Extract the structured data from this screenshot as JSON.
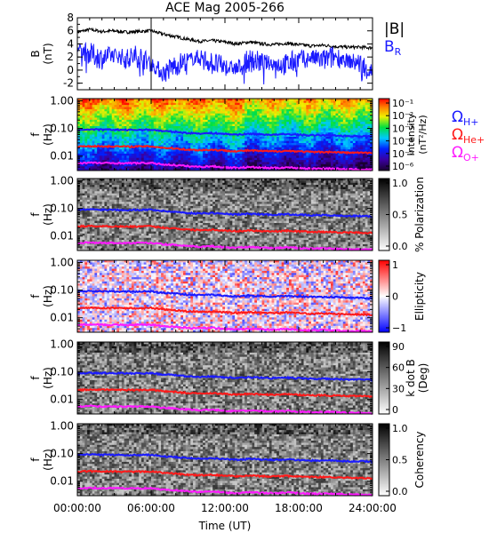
{
  "figure": {
    "title": "ACE Mag 2005-266",
    "xlabel": "Time (UT)",
    "x_ticks": [
      "00:00:00",
      "06:00:00",
      "12:00:00",
      "18:00:00",
      "24:00:00"
    ]
  },
  "colors": {
    "axis": "#000000",
    "B_total": "#000000",
    "B_R": "#1a1aff",
    "H_plus": "#1a1aff",
    "He_plus": "#ff1a1a",
    "O_plus": "#ff1aff"
  },
  "chart_data": [
    {
      "type": "line",
      "panel": "B",
      "ylabel": "B",
      "ylabel_unit": "(nT)",
      "ylim": [
        -3,
        8
      ],
      "y_ticks": [
        "-2",
        "0",
        "2",
        "4",
        "6",
        "8"
      ],
      "x_hours": [
        0,
        1,
        2,
        3,
        4,
        5,
        6,
        7,
        8,
        9,
        10,
        11,
        12,
        13,
        14,
        15,
        16,
        17,
        18,
        19,
        20,
        21,
        22,
        23,
        24
      ],
      "series": [
        {
          "name": "|B|",
          "color": "#000000",
          "values": [
            5.8,
            6.2,
            5.9,
            6.0,
            5.8,
            5.9,
            6.0,
            5.5,
            5.1,
            4.7,
            4.4,
            4.5,
            4.3,
            4.0,
            4.3,
            4.0,
            3.9,
            4.1,
            3.9,
            3.7,
            3.8,
            3.6,
            3.5,
            3.5,
            3.4
          ]
        },
        {
          "name": "B",
          "name_sub": "R",
          "color": "#1a1aff",
          "values": [
            3.2,
            2.5,
            1.8,
            2.4,
            1.7,
            2.2,
            1.0,
            -0.5,
            0.8,
            1.5,
            2.0,
            1.0,
            0.5,
            0.2,
            1.5,
            1.2,
            1.0,
            0.8,
            1.6,
            1.9,
            1.5,
            2.1,
            1.4,
            1.0,
            -0.5
          ]
        }
      ]
    },
    {
      "type": "heatmap",
      "panel": "intensity",
      "ylabel": "f",
      "ylabel_unit": "(Hz)",
      "y_scale": "log",
      "ylim": [
        0.003,
        1.2
      ],
      "y_ticks": [
        "1.00",
        "0.10",
        "0.01"
      ],
      "colorbar": {
        "label": "Intensity (nT²/Hz)",
        "scale": "log",
        "ticks": [
          "10⁻¹",
          "10⁻²",
          "10⁻³",
          "10⁻⁴",
          "10⁻⁵",
          "10⁻⁶"
        ],
        "palette": "rainbow"
      },
      "legend": [
        {
          "symbol": "Ω",
          "sub": "H+",
          "color": "#1a1aff"
        },
        {
          "symbol": "Ω",
          "sub": "He+",
          "color": "#ff1a1a"
        },
        {
          "symbol": "Ω",
          "sub": "O+",
          "color": "#ff1aff"
        }
      ]
    },
    {
      "type": "heatmap",
      "panel": "polarization",
      "ylabel": "f",
      "ylabel_unit": "(Hz)",
      "y_scale": "log",
      "y_ticks": [
        "1.00",
        "0.10",
        "0.01"
      ],
      "colorbar": {
        "label": "% Polarization",
        "ticks": [
          "1.0",
          "0.5",
          "0.0"
        ],
        "palette": "gray"
      }
    },
    {
      "type": "heatmap",
      "panel": "ellipticity",
      "ylabel": "f",
      "ylabel_unit": "(Hz)",
      "y_scale": "log",
      "y_ticks": [
        "1.00",
        "0.10",
        "0.01"
      ],
      "colorbar": {
        "label": "Ellipticity",
        "ticks": [
          "1",
          "0",
          "−1"
        ],
        "palette": "bwr"
      }
    },
    {
      "type": "heatmap",
      "panel": "kdotb",
      "ylabel": "f",
      "ylabel_unit": "(Hz)",
      "y_scale": "log",
      "y_ticks": [
        "1.00",
        "0.10",
        "0.01"
      ],
      "colorbar": {
        "label": "k dot B",
        "label2": "(Deg)",
        "ticks": [
          "90",
          "60",
          "30",
          "0"
        ],
        "palette": "gray"
      }
    },
    {
      "type": "heatmap",
      "panel": "coherency",
      "ylabel": "f",
      "ylabel_unit": "(Hz)",
      "y_scale": "log",
      "y_ticks": [
        "1.00",
        "0.10",
        "0.01"
      ],
      "colorbar": {
        "label": "Coherency",
        "ticks": [
          "1.0",
          "0.5",
          "0.0"
        ],
        "palette": "gray"
      }
    }
  ],
  "gyro_lines": {
    "x_hours": [
      0,
      1,
      2,
      3,
      4,
      5,
      6,
      7,
      8,
      9,
      10,
      11,
      12,
      13,
      14,
      15,
      16,
      17,
      18,
      19,
      20,
      21,
      22,
      23,
      24
    ],
    "H_plus_hz": [
      0.088,
      0.092,
      0.09,
      0.09,
      0.088,
      0.089,
      0.09,
      0.08,
      0.075,
      0.068,
      0.066,
      0.068,
      0.063,
      0.06,
      0.064,
      0.061,
      0.059,
      0.062,
      0.059,
      0.056,
      0.057,
      0.055,
      0.053,
      0.053,
      0.051
    ],
    "He_plus_hz": [
      0.022,
      0.023,
      0.0225,
      0.0225,
      0.022,
      0.0222,
      0.0225,
      0.02,
      0.0188,
      0.017,
      0.0165,
      0.017,
      0.0158,
      0.015,
      0.016,
      0.0152,
      0.0148,
      0.0155,
      0.0148,
      0.014,
      0.0142,
      0.0138,
      0.0133,
      0.0133,
      0.0128
    ],
    "O_plus_hz": [
      0.0055,
      0.0058,
      0.0056,
      0.0056,
      0.0055,
      0.0056,
      0.0056,
      0.005,
      0.0047,
      0.0043,
      0.0041,
      0.0043,
      0.0039,
      0.0038,
      0.004,
      0.0038,
      0.0037,
      0.0039,
      0.0037,
      0.0035,
      0.0036,
      0.0035,
      0.0033,
      0.0033,
      0.0032
    ]
  }
}
